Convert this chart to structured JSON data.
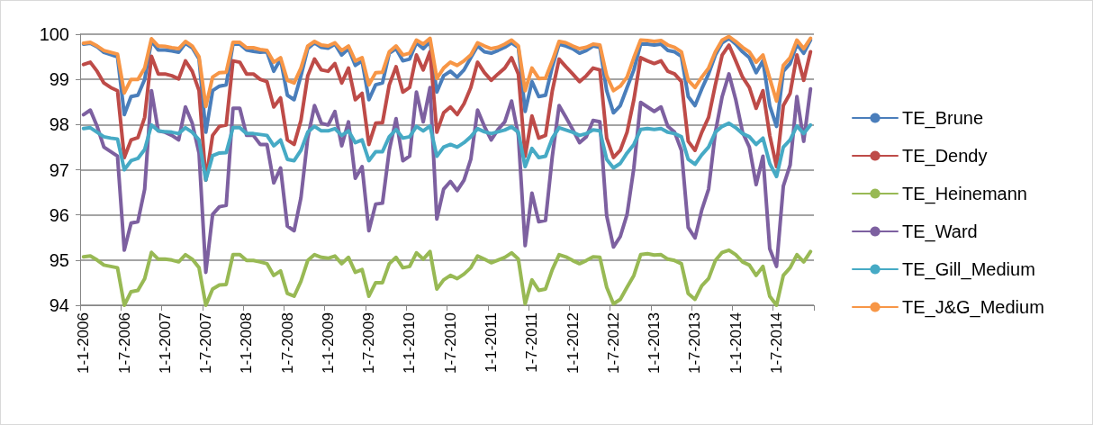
{
  "chart_data": {
    "type": "line",
    "categories": [
      "1-1-2006",
      null,
      null,
      null,
      null,
      null,
      "1-7-2006",
      null,
      null,
      null,
      null,
      null,
      "1-1-2007",
      null,
      null,
      null,
      null,
      null,
      "1-7-2007",
      null,
      null,
      null,
      null,
      null,
      "1-1-2008",
      null,
      null,
      null,
      null,
      null,
      "1-7-2008",
      null,
      null,
      null,
      null,
      null,
      "1-1-2009",
      null,
      null,
      null,
      null,
      null,
      "1-7-2009",
      null,
      null,
      null,
      null,
      null,
      "1-1-2010",
      null,
      null,
      null,
      null,
      null,
      "1-7-2010",
      null,
      null,
      null,
      null,
      null,
      "1-1-2011",
      null,
      null,
      null,
      null,
      null,
      "1-7-2011",
      null,
      null,
      null,
      null,
      null,
      "1-1-2012",
      null,
      null,
      null,
      null,
      null,
      "1-7-2012",
      null,
      null,
      null,
      null,
      null,
      "1-1-2013",
      null,
      null,
      null,
      null,
      null,
      "1-7-2013",
      null,
      null,
      null,
      null,
      null,
      "1-1-2014",
      null,
      null,
      null,
      null,
      null,
      "1-7-2014",
      null,
      null,
      null,
      null,
      null
    ],
    "series": [
      {
        "name": "TE_Brune",
        "color": "#4a7ebb",
        "values": [
          99.78,
          99.8,
          99.72,
          99.6,
          99.55,
          99.5,
          98.22,
          98.62,
          98.65,
          99.0,
          99.85,
          99.65,
          99.65,
          99.63,
          99.6,
          99.8,
          99.7,
          99.45,
          97.83,
          98.75,
          98.85,
          98.88,
          99.78,
          99.78,
          99.65,
          99.62,
          99.6,
          99.61,
          99.18,
          99.45,
          98.65,
          98.55,
          99.08,
          99.68,
          99.81,
          99.71,
          99.69,
          99.78,
          99.54,
          99.68,
          99.31,
          99.41,
          98.55,
          98.88,
          98.92,
          99.58,
          99.68,
          99.41,
          99.45,
          99.81,
          99.68,
          99.84,
          98.72,
          99.08,
          99.18,
          99.05,
          99.21,
          99.48,
          99.74,
          99.61,
          99.58,
          99.64,
          99.71,
          99.81,
          99.71,
          98.29,
          98.95,
          98.62,
          98.65,
          99.28,
          99.78,
          99.74,
          99.68,
          99.58,
          99.64,
          99.74,
          99.71,
          98.75,
          98.26,
          98.42,
          98.82,
          99.21,
          99.78,
          99.78,
          99.76,
          99.78,
          99.64,
          99.61,
          99.51,
          98.62,
          98.42,
          98.79,
          99.12,
          99.54,
          99.81,
          99.91,
          99.78,
          99.61,
          99.48,
          99.15,
          99.41,
          98.42,
          97.96,
          99.18,
          99.35,
          99.78,
          99.58,
          99.87
        ]
      },
      {
        "name": "TE_Dendy",
        "color": "#be4b48",
        "values": [
          99.33,
          99.38,
          99.18,
          98.92,
          98.82,
          98.75,
          97.27,
          97.66,
          97.71,
          98.16,
          99.51,
          99.12,
          99.12,
          99.08,
          99.01,
          99.41,
          99.18,
          98.75,
          96.77,
          97.76,
          97.96,
          97.99,
          99.41,
          99.38,
          99.12,
          99.12,
          99.0,
          98.95,
          98.39,
          98.59,
          97.66,
          97.56,
          98.09,
          99.08,
          99.45,
          99.21,
          99.18,
          99.35,
          98.92,
          99.25,
          98.55,
          98.69,
          97.56,
          98.03,
          98.04,
          98.88,
          99.28,
          98.72,
          98.82,
          99.54,
          99.21,
          99.61,
          97.83,
          98.26,
          98.39,
          98.22,
          98.46,
          98.82,
          99.38,
          99.15,
          98.98,
          99.12,
          99.25,
          99.48,
          99.12,
          97.3,
          98.19,
          97.7,
          97.76,
          98.75,
          99.45,
          99.28,
          99.12,
          98.95,
          99.08,
          99.25,
          99.21,
          97.7,
          97.27,
          97.43,
          97.83,
          98.55,
          99.48,
          99.41,
          99.35,
          99.41,
          99.18,
          99.12,
          98.95,
          97.63,
          97.43,
          97.83,
          98.16,
          98.88,
          99.54,
          99.76,
          99.41,
          99.05,
          98.82,
          98.36,
          98.75,
          97.76,
          97.07,
          98.42,
          98.69,
          99.54,
          98.98,
          99.61
        ]
      },
      {
        "name": "TE_Heinemann",
        "color": "#98b954",
        "values": [
          95.07,
          95.09,
          95.0,
          94.89,
          94.86,
          94.83,
          94.0,
          94.3,
          94.33,
          94.59,
          95.17,
          95.02,
          95.02,
          95.0,
          94.96,
          95.12,
          95.02,
          94.83,
          94.0,
          94.36,
          94.45,
          94.46,
          95.12,
          95.12,
          94.99,
          94.99,
          94.96,
          94.92,
          94.66,
          94.76,
          94.26,
          94.2,
          94.53,
          94.99,
          95.12,
          95.06,
          95.04,
          95.09,
          94.92,
          95.06,
          94.73,
          94.79,
          94.2,
          94.5,
          94.5,
          94.92,
          95.06,
          94.83,
          94.86,
          95.16,
          95.02,
          95.19,
          94.36,
          94.56,
          94.66,
          94.59,
          94.69,
          94.83,
          95.09,
          95.02,
          94.94,
          95.0,
          95.06,
          95.16,
          95.02,
          94.03,
          94.56,
          94.33,
          94.36,
          94.79,
          95.12,
          95.07,
          94.99,
          94.92,
          94.99,
          95.07,
          95.06,
          94.4,
          94.03,
          94.13,
          94.4,
          94.66,
          95.12,
          95.14,
          95.11,
          95.12,
          95.02,
          94.99,
          94.92,
          94.26,
          94.13,
          94.43,
          94.59,
          94.99,
          95.17,
          95.22,
          95.12,
          94.96,
          94.89,
          94.66,
          94.86,
          94.2,
          94.0,
          94.66,
          94.83,
          95.12,
          94.96,
          95.19
        ]
      },
      {
        "name": "TE_Ward",
        "color": "#7d60a0",
        "values": [
          98.22,
          98.32,
          97.96,
          97.5,
          97.4,
          97.3,
          95.22,
          95.82,
          95.85,
          96.57,
          98.75,
          97.86,
          97.83,
          97.76,
          97.66,
          98.39,
          98.03,
          97.37,
          94.73,
          96.01,
          96.18,
          96.21,
          98.36,
          98.36,
          97.76,
          97.76,
          97.56,
          97.56,
          96.71,
          97.04,
          95.75,
          95.65,
          96.38,
          97.7,
          98.42,
          98.03,
          97.99,
          98.29,
          97.53,
          98.06,
          96.81,
          97.07,
          95.65,
          96.24,
          96.26,
          97.43,
          98.13,
          97.2,
          97.3,
          98.72,
          98.06,
          98.82,
          95.91,
          96.57,
          96.74,
          96.54,
          96.77,
          97.23,
          98.32,
          97.96,
          97.66,
          97.89,
          98.06,
          98.52,
          97.76,
          95.32,
          96.48,
          95.85,
          95.88,
          97.3,
          98.42,
          98.16,
          97.89,
          97.6,
          97.73,
          98.09,
          98.06,
          95.98,
          95.29,
          95.52,
          96.01,
          97.04,
          98.49,
          98.39,
          98.29,
          98.39,
          97.96,
          97.83,
          97.43,
          95.72,
          95.49,
          96.11,
          96.57,
          97.83,
          98.62,
          99.12,
          98.55,
          97.83,
          97.5,
          96.67,
          97.3,
          95.25,
          94.86,
          96.64,
          97.1,
          98.62,
          97.63,
          98.79
        ]
      },
      {
        "name": "TE_Gill_Medium",
        "color": "#46aac5",
        "values": [
          97.91,
          97.93,
          97.83,
          97.73,
          97.7,
          97.68,
          97.0,
          97.2,
          97.25,
          97.45,
          97.99,
          97.86,
          97.84,
          97.83,
          97.8,
          97.93,
          97.83,
          97.66,
          96.77,
          97.31,
          97.37,
          97.38,
          97.93,
          97.93,
          97.8,
          97.8,
          97.78,
          97.76,
          97.53,
          97.66,
          97.23,
          97.2,
          97.43,
          97.83,
          97.96,
          97.86,
          97.86,
          97.91,
          97.76,
          97.86,
          97.6,
          97.66,
          97.2,
          97.4,
          97.4,
          97.73,
          97.89,
          97.7,
          97.73,
          97.96,
          97.86,
          97.97,
          97.3,
          97.5,
          97.56,
          97.5,
          97.6,
          97.73,
          97.91,
          97.84,
          97.8,
          97.84,
          97.88,
          97.95,
          97.83,
          97.07,
          97.47,
          97.27,
          97.3,
          97.7,
          97.93,
          97.88,
          97.83,
          97.76,
          97.8,
          97.88,
          97.86,
          97.23,
          97.04,
          97.14,
          97.37,
          97.56,
          97.89,
          97.91,
          97.89,
          97.91,
          97.83,
          97.8,
          97.73,
          97.23,
          97.12,
          97.33,
          97.5,
          97.83,
          97.96,
          98.03,
          97.93,
          97.8,
          97.73,
          97.56,
          97.7,
          97.14,
          96.85,
          97.5,
          97.66,
          97.97,
          97.8,
          97.99
        ]
      },
      {
        "name": "TE_J&G_Medium",
        "color": "#f79646",
        "values": [
          99.8,
          99.82,
          99.74,
          99.64,
          99.6,
          99.56,
          98.7,
          99.0,
          99.0,
          99.25,
          99.9,
          99.74,
          99.73,
          99.7,
          99.68,
          99.84,
          99.74,
          99.5,
          98.4,
          99.05,
          99.15,
          99.16,
          99.82,
          99.82,
          99.7,
          99.7,
          99.66,
          99.64,
          99.38,
          99.48,
          98.98,
          98.92,
          99.25,
          99.74,
          99.84,
          99.76,
          99.74,
          99.81,
          99.64,
          99.74,
          99.41,
          99.48,
          98.88,
          99.15,
          99.16,
          99.61,
          99.74,
          99.54,
          99.58,
          99.87,
          99.78,
          99.91,
          99.02,
          99.25,
          99.38,
          99.31,
          99.41,
          99.54,
          99.81,
          99.74,
          99.68,
          99.71,
          99.78,
          99.87,
          99.74,
          98.75,
          99.25,
          99.02,
          99.03,
          99.41,
          99.84,
          99.81,
          99.74,
          99.68,
          99.71,
          99.78,
          99.76,
          99.08,
          98.75,
          98.85,
          99.05,
          99.48,
          99.87,
          99.86,
          99.84,
          99.86,
          99.76,
          99.71,
          99.61,
          98.98,
          98.82,
          99.05,
          99.25,
          99.61,
          99.87,
          99.95,
          99.84,
          99.71,
          99.61,
          99.38,
          99.54,
          99.02,
          98.52,
          99.31,
          99.48,
          99.87,
          99.68,
          99.91
        ]
      }
    ],
    "ylim": [
      94,
      100
    ],
    "yticks": [
      94,
      95,
      96,
      97,
      98,
      99,
      100
    ],
    "grid": "y",
    "legend": "right",
    "marker": "none",
    "line_style": "solid"
  }
}
